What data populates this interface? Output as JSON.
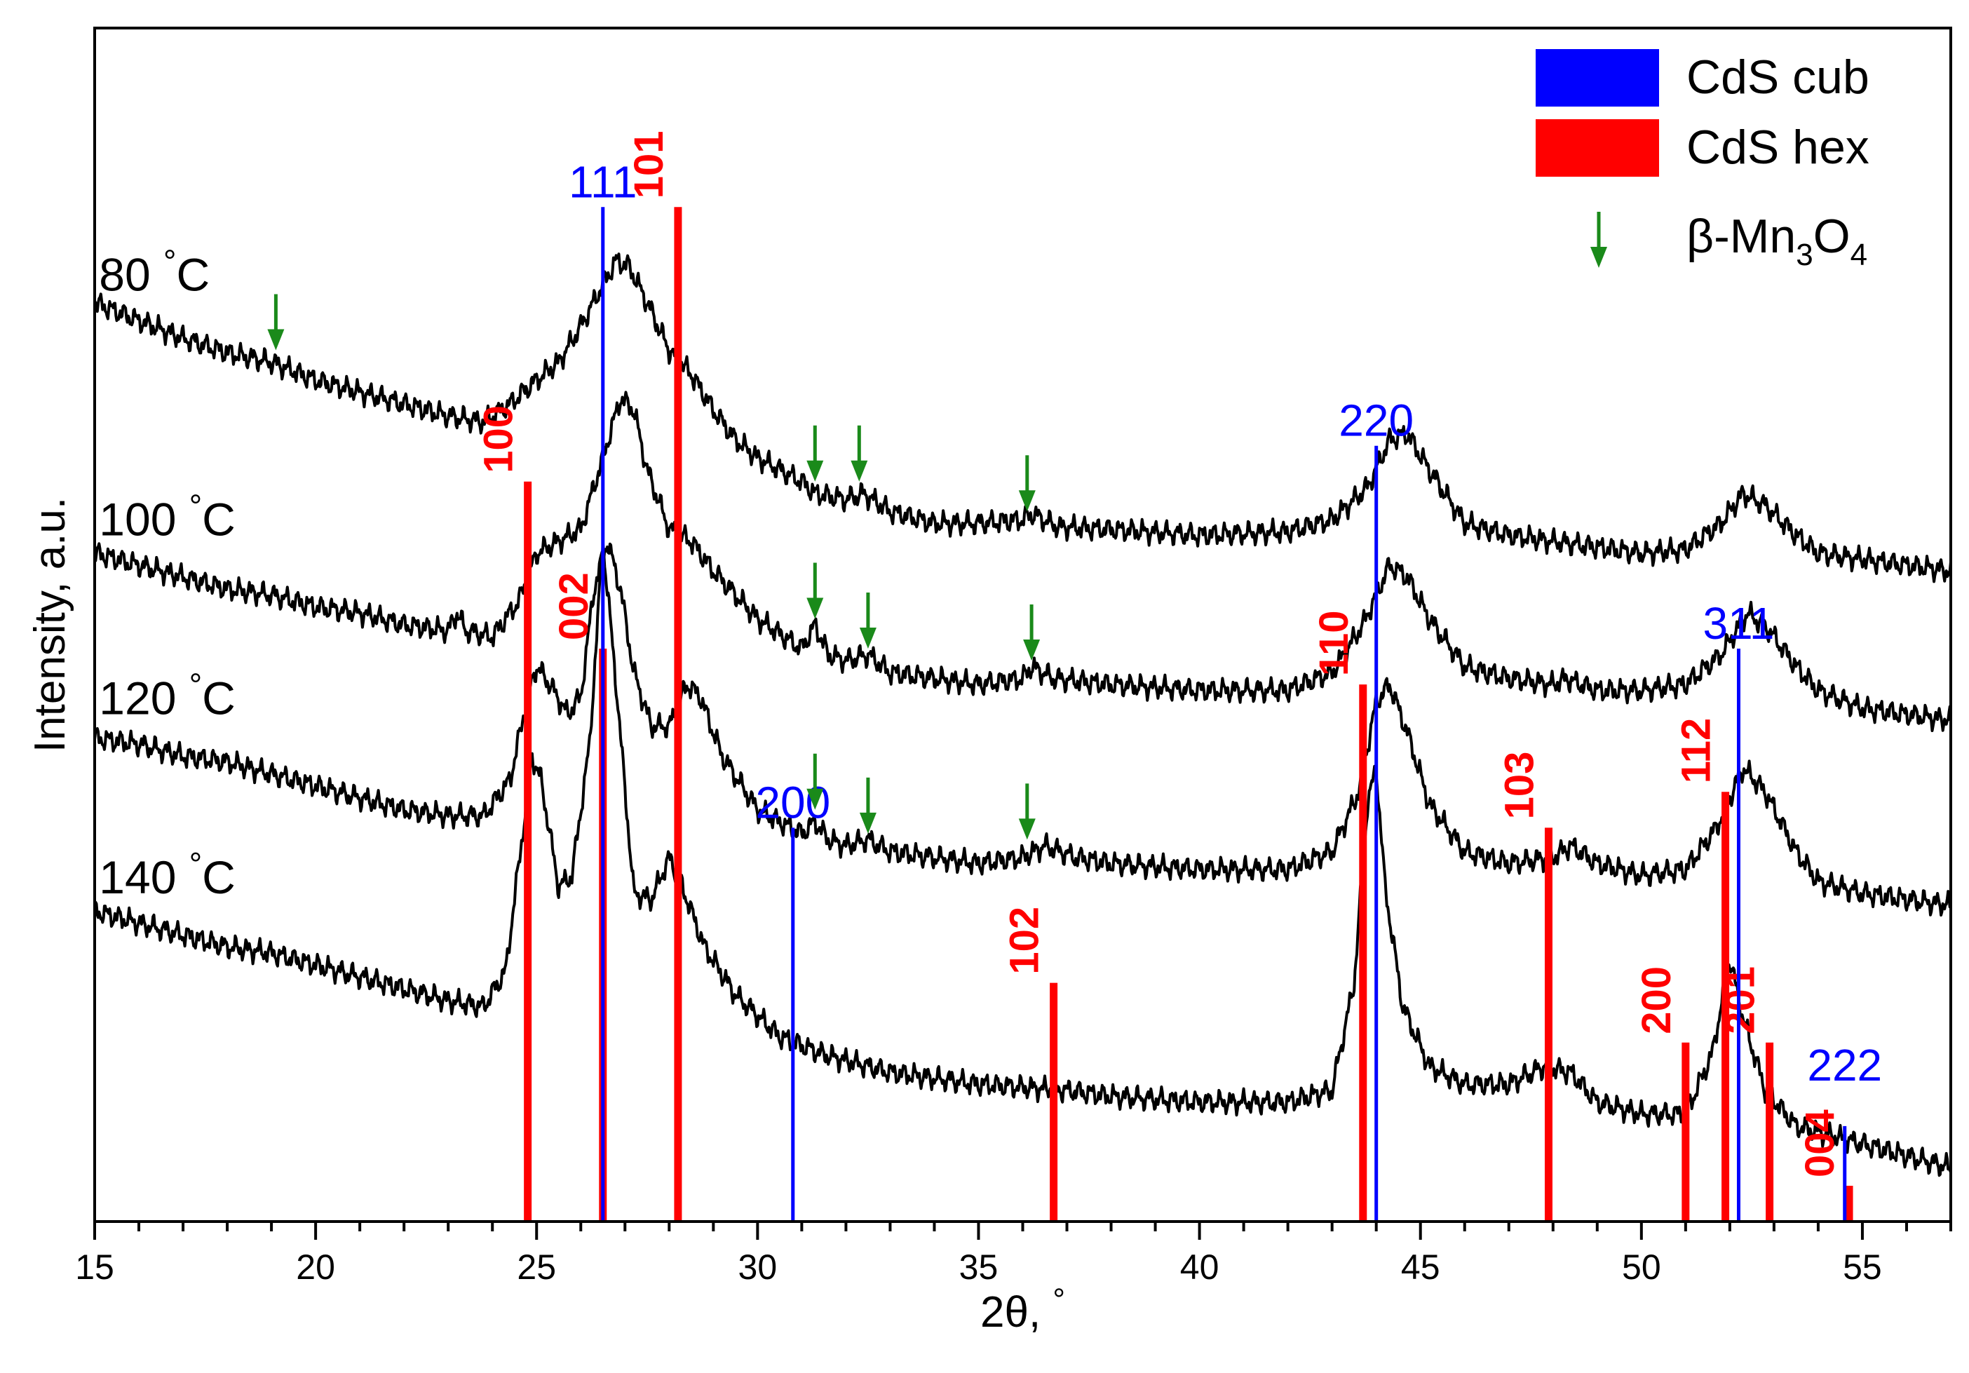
{
  "chart_data": {
    "type": "line",
    "title": "",
    "xlabel": "2θ, °",
    "ylabel": "Intensity, a.u.",
    "xlim": [
      15,
      57
    ],
    "x_major_ticks": [
      15,
      20,
      25,
      30,
      35,
      40,
      45,
      50,
      55
    ],
    "x_minor_step": 1,
    "y_ticks_visible": false,
    "grid": false,
    "legend_position": "top-right",
    "legend": [
      {
        "label": "CdS cub",
        "marker": "bar",
        "color": "#0000ff"
      },
      {
        "label": "CdS hex",
        "marker": "bar",
        "color": "#ff0000"
      },
      {
        "label": "β-Mn",
        "sub1": "3",
        "mid": "O",
        "sub2": "4",
        "marker": "arrow",
        "color": "#1a8a1a"
      }
    ],
    "series": [
      {
        "name": "80 °C",
        "label_num": "80",
        "label_unit": "°C",
        "color": "#000000",
        "label_pos": [
          15.1,
          78
        ],
        "points": [
          [
            15,
            77
          ],
          [
            16,
            75.5
          ],
          [
            17,
            74
          ],
          [
            18,
            72.8
          ],
          [
            19,
            72
          ],
          [
            20,
            70.5
          ],
          [
            21,
            69.5
          ],
          [
            22,
            68.5
          ],
          [
            23,
            67.5
          ],
          [
            23.8,
            67
          ],
          [
            24.4,
            68.5
          ],
          [
            25,
            70.5
          ],
          [
            25.5,
            72
          ],
          [
            26,
            75
          ],
          [
            26.5,
            78.5
          ],
          [
            26.8,
            80.5
          ],
          [
            27.1,
            80
          ],
          [
            27.5,
            77
          ],
          [
            28,
            73
          ],
          [
            28.5,
            71
          ],
          [
            29,
            68
          ],
          [
            29.5,
            65.5
          ],
          [
            30,
            64
          ],
          [
            31,
            62
          ],
          [
            31.3,
            61
          ],
          [
            32,
            60.5
          ],
          [
            32.4,
            61
          ],
          [
            33,
            59.5
          ],
          [
            34,
            58.5
          ],
          [
            35,
            58.5
          ],
          [
            36,
            58.8
          ],
          [
            36.2,
            59.3
          ],
          [
            36.8,
            58.2
          ],
          [
            38,
            58
          ],
          [
            40,
            57.5
          ],
          [
            42,
            57.8
          ],
          [
            43,
            58.8
          ],
          [
            43.8,
            61.5
          ],
          [
            44.3,
            65.5
          ],
          [
            44.7,
            66
          ],
          [
            45.2,
            63
          ],
          [
            46,
            58.5
          ],
          [
            47,
            57.5
          ],
          [
            48,
            57
          ],
          [
            49,
            56.5
          ],
          [
            50,
            56
          ],
          [
            51,
            56.3
          ],
          [
            51.8,
            58.5
          ],
          [
            52.3,
            61
          ],
          [
            52.8,
            60
          ],
          [
            53.5,
            57.5
          ],
          [
            54,
            56
          ],
          [
            55,
            55.5
          ],
          [
            56,
            55
          ],
          [
            57,
            54.5
          ]
        ]
      },
      {
        "name": "100 °C",
        "label_num": "100",
        "label_unit": "°C",
        "color": "#000000",
        "label_pos": [
          15.1,
          57.5
        ],
        "points": [
          [
            15,
            56
          ],
          [
            16,
            55
          ],
          [
            17,
            54
          ],
          [
            18,
            53
          ],
          [
            19,
            52.5
          ],
          [
            20,
            51.5
          ],
          [
            21,
            51
          ],
          [
            22,
            50
          ],
          [
            23,
            49.5
          ],
          [
            23.2,
            51
          ],
          [
            23.4,
            49.5
          ],
          [
            24,
            49
          ],
          [
            24.6,
            52
          ],
          [
            25,
            56
          ],
          [
            25.5,
            57
          ],
          [
            26,
            58
          ],
          [
            26.5,
            64
          ],
          [
            26.9,
            69
          ],
          [
            27.2,
            68
          ],
          [
            27.5,
            63
          ],
          [
            28,
            58
          ],
          [
            28.5,
            57
          ],
          [
            29,
            54.5
          ],
          [
            30,
            50.5
          ],
          [
            31,
            48
          ],
          [
            31.3,
            50
          ],
          [
            31.6,
            47.5
          ],
          [
            32,
            47
          ],
          [
            32.5,
            47.5
          ],
          [
            33,
            46
          ],
          [
            34,
            45.5
          ],
          [
            35,
            45
          ],
          [
            36,
            45.5
          ],
          [
            36.2,
            46.5
          ],
          [
            36.7,
            45.5
          ],
          [
            38,
            45
          ],
          [
            40,
            44.5
          ],
          [
            42,
            44.5
          ],
          [
            43,
            46
          ],
          [
            43.7,
            50
          ],
          [
            44.3,
            55
          ],
          [
            44.7,
            54
          ],
          [
            45.2,
            50.5
          ],
          [
            46,
            46.5
          ],
          [
            47,
            45.5
          ],
          [
            48,
            45
          ],
          [
            48.3,
            45.5
          ],
          [
            49,
            44.5
          ],
          [
            50,
            44.5
          ],
          [
            51,
            45
          ],
          [
            51.8,
            47.5
          ],
          [
            52.4,
            51
          ],
          [
            52.9,
            49.5
          ],
          [
            53.5,
            46.5
          ],
          [
            54,
            44.5
          ],
          [
            55,
            43
          ],
          [
            56,
            42.5
          ],
          [
            57,
            42
          ]
        ]
      },
      {
        "name": "120 °C",
        "label_num": "120",
        "label_unit": "°C",
        "color": "#000000",
        "label_pos": [
          15.1,
          42.5
        ],
        "points": [
          [
            15,
            40.5
          ],
          [
            16,
            40
          ],
          [
            17,
            39
          ],
          [
            18,
            38.5
          ],
          [
            19,
            37.5
          ],
          [
            20,
            36.5
          ],
          [
            21,
            35.5
          ],
          [
            22,
            34.5
          ],
          [
            23,
            34
          ],
          [
            23.8,
            34
          ],
          [
            24.4,
            37
          ],
          [
            24.8,
            44
          ],
          [
            25,
            46.5
          ],
          [
            25.3,
            45
          ],
          [
            25.7,
            42.5
          ],
          [
            26,
            44
          ],
          [
            26.3,
            53
          ],
          [
            26.6,
            57
          ],
          [
            26.9,
            53
          ],
          [
            27.2,
            46
          ],
          [
            27.6,
            41.5
          ],
          [
            28,
            41.5
          ],
          [
            28.4,
            45
          ],
          [
            28.7,
            44
          ],
          [
            29.2,
            39
          ],
          [
            30,
            34.5
          ],
          [
            31,
            32.5
          ],
          [
            31.3,
            33.5
          ],
          [
            31.6,
            32
          ],
          [
            32,
            31.5
          ],
          [
            32.5,
            32
          ],
          [
            33,
            31
          ],
          [
            34,
            30.5
          ],
          [
            35,
            30
          ],
          [
            36,
            30.5
          ],
          [
            36.5,
            31.5
          ],
          [
            37.2,
            30.5
          ],
          [
            38,
            30
          ],
          [
            40,
            29.5
          ],
          [
            42,
            29.5
          ],
          [
            43,
            31
          ],
          [
            43.6,
            36
          ],
          [
            44,
            43.5
          ],
          [
            44.3,
            45
          ],
          [
            44.7,
            41
          ],
          [
            45.2,
            35
          ],
          [
            46,
            31
          ],
          [
            47,
            30
          ],
          [
            48,
            30.5
          ],
          [
            48.4,
            31.5
          ],
          [
            49,
            30
          ],
          [
            50,
            29
          ],
          [
            51,
            29.5
          ],
          [
            51.7,
            33
          ],
          [
            52.3,
            38
          ],
          [
            52.8,
            36
          ],
          [
            53.5,
            31
          ],
          [
            54,
            28.5
          ],
          [
            55,
            27.5
          ],
          [
            56,
            27
          ],
          [
            57,
            26.5
          ]
        ]
      },
      {
        "name": "140 °C",
        "label_num": "140",
        "label_unit": "°C",
        "color": "#000000",
        "label_pos": [
          15.1,
          27.5
        ],
        "points": [
          [
            15,
            26
          ],
          [
            16,
            25
          ],
          [
            17,
            24
          ],
          [
            18,
            23
          ],
          [
            19,
            22.5
          ],
          [
            20,
            21.5
          ],
          [
            21,
            20.5
          ],
          [
            22,
            19.5
          ],
          [
            23,
            18.5
          ],
          [
            23.8,
            18
          ],
          [
            24.3,
            21
          ],
          [
            24.7,
            33
          ],
          [
            24.9,
            39
          ],
          [
            25.1,
            37
          ],
          [
            25.5,
            28
          ],
          [
            25.8,
            29
          ],
          [
            26.2,
            40
          ],
          [
            26.5,
            57
          ],
          [
            26.8,
            45
          ],
          [
            27.2,
            27.5
          ],
          [
            27.6,
            27
          ],
          [
            28,
            30.5
          ],
          [
            28.3,
            28
          ],
          [
            28.8,
            23
          ],
          [
            29.5,
            19
          ],
          [
            30.5,
            15.5
          ],
          [
            31.5,
            14
          ],
          [
            33,
            12.5
          ],
          [
            35,
            11.5
          ],
          [
            37,
            11
          ],
          [
            38,
            10.5
          ],
          [
            40,
            10
          ],
          [
            42,
            10
          ],
          [
            43,
            11
          ],
          [
            43.5,
            20
          ],
          [
            43.8,
            35
          ],
          [
            44,
            38
          ],
          [
            44.2,
            28
          ],
          [
            44.6,
            18
          ],
          [
            45.2,
            13
          ],
          [
            46,
            11.5
          ],
          [
            47,
            11.5
          ],
          [
            47.8,
            13
          ],
          [
            48.4,
            12.5
          ],
          [
            49,
            10
          ],
          [
            50,
            9
          ],
          [
            51,
            9
          ],
          [
            51.6,
            14
          ],
          [
            52,
            22
          ],
          [
            52.3,
            17
          ],
          [
            52.8,
            11
          ],
          [
            53.5,
            8
          ],
          [
            54,
            7.5
          ],
          [
            55,
            6.5
          ],
          [
            56,
            5.5
          ],
          [
            57,
            4.5
          ]
        ]
      }
    ],
    "cub_refs": [
      {
        "hkl": "111",
        "x": 26.5,
        "top": 85
      },
      {
        "hkl": "200",
        "x": 30.8,
        "top": 33
      },
      {
        "hkl": "220",
        "x": 44.0,
        "top": 65
      },
      {
        "hkl": "311",
        "x": 52.2,
        "top": 48
      },
      {
        "hkl": "222",
        "x": 54.6,
        "top": 8
      }
    ],
    "hex_refs": [
      {
        "hkl": "100",
        "x": 24.8,
        "top": 62
      },
      {
        "hkl": "002",
        "x": 26.5,
        "top": 48
      },
      {
        "hkl": "101",
        "x": 28.2,
        "top": 85
      },
      {
        "hkl": "102",
        "x": 36.7,
        "top": 20
      },
      {
        "hkl": "110",
        "x": 43.7,
        "top": 45
      },
      {
        "hkl": "103",
        "x": 47.9,
        "top": 33
      },
      {
        "hkl": "200",
        "x": 51.0,
        "top": 15
      },
      {
        "hkl": "112",
        "x": 51.9,
        "top": 36
      },
      {
        "hkl": "201",
        "x": 52.9,
        "top": 15
      },
      {
        "hkl": "004",
        "x": 54.7,
        "top": 3
      }
    ],
    "mn3o4_arrows": [
      {
        "x": 19.1,
        "tip": 73
      },
      {
        "x": 31.3,
        "tip": 62
      },
      {
        "x": 32.3,
        "tip": 62
      },
      {
        "x": 36.1,
        "tip": 59.5
      },
      {
        "x": 31.3,
        "tip": 50.5
      },
      {
        "x": 32.5,
        "tip": 48
      },
      {
        "x": 36.2,
        "tip": 47
      },
      {
        "x": 31.3,
        "tip": 34.5
      },
      {
        "x": 32.5,
        "tip": 32.5
      },
      {
        "x": 36.1,
        "tip": 32
      }
    ]
  }
}
